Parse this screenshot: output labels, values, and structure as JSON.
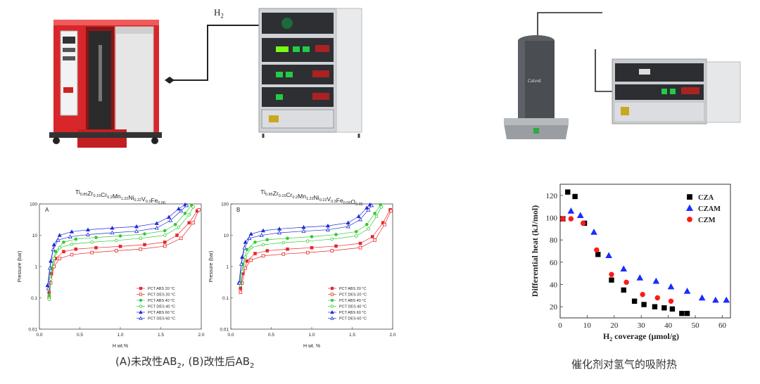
{
  "photos": {
    "h2_label": "H",
    "h2_sub": "2",
    "calvet_label": "Calvet"
  },
  "captions": {
    "left_A": "(A)未改性AB",
    "left_A_sub": "2",
    "left_sep": ", ",
    "left_B": "(B)改性后AB",
    "left_B_sub": "2",
    "right": "催化剂对氢气的吸附热"
  },
  "colors": {
    "red": "#e8262a",
    "green": "#2ecc2e",
    "blue": "#1f2bd8",
    "black": "#111111",
    "cza": "#000000",
    "czam": "#1a2bff",
    "czm": "#ff1a1a"
  },
  "chart_data": [
    {
      "type": "line",
      "panel_letter": "A",
      "title": "Ti0.85Zr0.15Cr0.2Mn1.22Ni0.22V0.3Fe0.06",
      "xlabel": "H wt.%",
      "ylabel": "Pressure (bar)",
      "xlim": [
        0,
        2.0
      ],
      "ylim": [
        0.01,
        100
      ],
      "yscale": "log",
      "xticks": [
        "0.0",
        "0.5",
        "1.0",
        "1.5",
        "2.0"
      ],
      "yticks": [
        "0.01",
        "0.1",
        "1",
        "10",
        "100"
      ],
      "legend_position": "lower-right",
      "series": [
        {
          "name": "PCT ABS 20 °C",
          "color": "red",
          "marker": "filled-square",
          "x": [
            0.12,
            0.15,
            0.2,
            0.3,
            0.45,
            0.7,
            1.0,
            1.3,
            1.55,
            1.7,
            1.85,
            1.95
          ],
          "y": [
            0.15,
            0.6,
            1.8,
            3.0,
            3.6,
            4.0,
            4.4,
            5.0,
            6.0,
            10,
            25,
            60
          ]
        },
        {
          "name": "PCT DES 20 °C",
          "color": "red",
          "marker": "open-square",
          "x": [
            0.12,
            0.14,
            0.18,
            0.25,
            0.4,
            0.65,
            0.95,
            1.25,
            1.55,
            1.75,
            1.9,
            1.97
          ],
          "y": [
            0.1,
            0.3,
            1.0,
            1.8,
            2.4,
            2.8,
            3.2,
            3.6,
            4.5,
            8,
            25,
            65
          ]
        },
        {
          "name": "PCT ABS 40 °C",
          "color": "green",
          "marker": "filled-circle",
          "x": [
            0.12,
            0.15,
            0.2,
            0.3,
            0.45,
            0.7,
            1.0,
            1.3,
            1.55,
            1.68,
            1.8,
            1.88
          ],
          "y": [
            0.12,
            0.9,
            3.0,
            6.0,
            7.5,
            8.5,
            9.5,
            11,
            14,
            22,
            50,
            90
          ]
        },
        {
          "name": "PCT DES 40 °C",
          "color": "green",
          "marker": "open-circle",
          "x": [
            0.12,
            0.14,
            0.18,
            0.25,
            0.4,
            0.65,
            0.95,
            1.25,
            1.55,
            1.72,
            1.85,
            1.9
          ],
          "y": [
            0.09,
            0.4,
            1.8,
            4.0,
            5.2,
            6.0,
            6.8,
            8.0,
            10,
            18,
            45,
            80
          ]
        },
        {
          "name": "PCT ABS 60 °C",
          "color": "blue",
          "marker": "filled-triangle",
          "x": [
            0.1,
            0.14,
            0.18,
            0.25,
            0.4,
            0.6,
            0.9,
            1.2,
            1.45,
            1.6,
            1.72,
            1.8
          ],
          "y": [
            0.25,
            1.5,
            5.0,
            10,
            13,
            15,
            17,
            19,
            24,
            38,
            70,
            95
          ]
        },
        {
          "name": "PCT DES 60 °C",
          "color": "blue",
          "marker": "open-triangle",
          "x": [
            0.11,
            0.13,
            0.17,
            0.23,
            0.38,
            0.6,
            0.9,
            1.2,
            1.45,
            1.62,
            1.75,
            1.82
          ],
          "y": [
            0.2,
            0.9,
            3.5,
            7.0,
            9.0,
            10.5,
            12,
            13.5,
            17,
            30,
            60,
            90
          ]
        }
      ]
    },
    {
      "type": "line",
      "panel_letter": "B",
      "title": "Ti0.85Zr0.15Cr0.2Mn1.22Ni0.22V0.3Fe0.06O0.05",
      "xlabel": "H wt. %",
      "ylabel": "Pressure (bar)",
      "xlim": [
        0,
        2.0
      ],
      "ylim": [
        0.01,
        100
      ],
      "yscale": "log",
      "xticks": [
        "0.0",
        "0.5",
        "1.0",
        "1.5",
        "2.0"
      ],
      "yticks": [
        "0.01",
        "0.1",
        "1",
        "10",
        "100"
      ],
      "legend_position": "lower-right",
      "series": [
        {
          "name": "PCT ABS 20 °C",
          "color": "red",
          "marker": "filled-square",
          "x": [
            0.12,
            0.15,
            0.2,
            0.3,
            0.45,
            0.7,
            1.0,
            1.3,
            1.6,
            1.75,
            1.88,
            1.97
          ],
          "y": [
            0.2,
            0.6,
            1.5,
            2.6,
            3.2,
            3.6,
            4.0,
            4.5,
            5.5,
            9,
            25,
            65
          ]
        },
        {
          "name": "PCT DES 20 °C",
          "color": "red",
          "marker": "open-square",
          "x": [
            0.12,
            0.14,
            0.18,
            0.25,
            0.4,
            0.65,
            0.95,
            1.25,
            1.6,
            1.78,
            1.9,
            1.98
          ],
          "y": [
            0.15,
            0.3,
            0.9,
            1.6,
            2.2,
            2.5,
            2.8,
            3.2,
            4.0,
            7,
            22,
            60
          ]
        },
        {
          "name": "PCT ABS 40 °C",
          "color": "green",
          "marker": "filled-circle",
          "x": [
            0.12,
            0.15,
            0.2,
            0.3,
            0.45,
            0.7,
            1.0,
            1.3,
            1.55,
            1.68,
            1.78,
            1.85
          ],
          "y": [
            0.3,
            1.2,
            3.5,
            6.0,
            7.2,
            8.0,
            9.0,
            10.5,
            13,
            22,
            50,
            95
          ]
        },
        {
          "name": "PCT DES 40 °C",
          "color": "green",
          "marker": "open-circle",
          "x": [
            0.12,
            0.14,
            0.18,
            0.25,
            0.4,
            0.65,
            0.95,
            1.25,
            1.55,
            1.7,
            1.8,
            1.86
          ],
          "y": [
            0.25,
            0.7,
            2.0,
            4.0,
            5.0,
            5.8,
            6.5,
            7.5,
            9.5,
            16,
            40,
            80
          ]
        },
        {
          "name": "PCT ABS 60 °C",
          "color": "blue",
          "marker": "filled-triangle",
          "x": [
            0.1,
            0.14,
            0.18,
            0.25,
            0.4,
            0.6,
            0.9,
            1.2,
            1.45,
            1.58,
            1.68,
            1.72
          ],
          "y": [
            0.3,
            2.0,
            6.0,
            11,
            14,
            16,
            18,
            20,
            25,
            40,
            75,
            95
          ]
        },
        {
          "name": "PCT DES 60 °C",
          "color": "blue",
          "marker": "open-triangle",
          "x": [
            0.11,
            0.13,
            0.17,
            0.23,
            0.38,
            0.6,
            0.9,
            1.2,
            1.45,
            1.6,
            1.7,
            1.74
          ],
          "y": [
            0.3,
            1.2,
            4.0,
            8.0,
            10,
            12,
            13.5,
            15,
            19,
            32,
            65,
            90
          ]
        }
      ]
    },
    {
      "type": "scatter",
      "title": "",
      "xlabel_parts": [
        "H",
        "2",
        " coverage (μmol/g)"
      ],
      "ylabel": "Differential heat (kJ/mol)",
      "xlim": [
        0,
        63
      ],
      "ylim": [
        10,
        130
      ],
      "xticks": [
        0,
        10,
        20,
        30,
        40,
        50,
        60
      ],
      "yticks": [
        20,
        40,
        60,
        80,
        100,
        120
      ],
      "legend_position": "top-right",
      "series": [
        {
          "name": "CZA",
          "color": "cza",
          "marker": "square",
          "x": [
            1,
            2.8,
            5.5,
            9,
            14,
            19,
            23.5,
            27.5,
            31,
            35,
            38.5,
            41.5,
            45,
            47
          ],
          "y": [
            99,
            123,
            119,
            95,
            67,
            44,
            35,
            25,
            22,
            20,
            19,
            18,
            14,
            14
          ]
        },
        {
          "name": "CZAM",
          "color": "czam",
          "marker": "triangle",
          "x": [
            4,
            7.5,
            12.5,
            18,
            23.5,
            29.5,
            35.5,
            41,
            47,
            52.5,
            57.5,
            61.5
          ],
          "y": [
            106,
            102,
            87,
            66,
            54,
            46,
            43,
            38,
            34,
            28,
            26,
            26
          ]
        },
        {
          "name": "CZM",
          "color": "czm",
          "marker": "circle",
          "x": [
            1,
            4,
            8.5,
            13.5,
            19,
            24.5,
            30.5,
            36,
            41
          ],
          "y": [
            99,
            99,
            95,
            71,
            49,
            42,
            31,
            28,
            25
          ]
        }
      ]
    }
  ]
}
